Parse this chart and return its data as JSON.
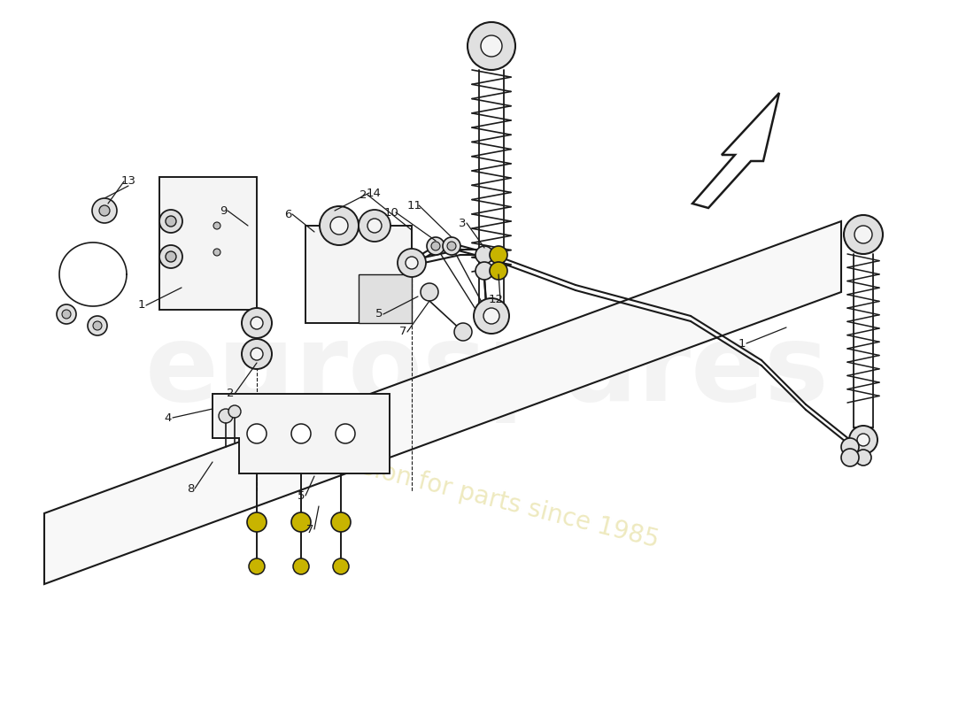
{
  "bg": "#ffffff",
  "lc": "#1a1a1a",
  "hc": "#c8b400",
  "g1": "#f4f4f4",
  "g2": "#e0e0e0",
  "g3": "#c0c0c0"
}
